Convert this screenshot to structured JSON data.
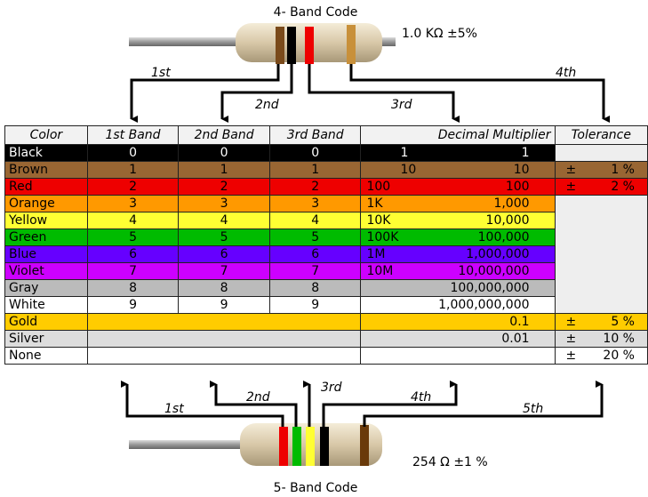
{
  "top": {
    "title": "4- Band Code",
    "value": "1.0 KΩ  ±5%",
    "labels": [
      "1st",
      "2nd",
      "3rd",
      "4th"
    ]
  },
  "bottom": {
    "title": "5- Band Code",
    "value": "254 Ω  ±1 %",
    "labels": [
      "1st",
      "2nd",
      "3rd",
      "4th",
      "5th"
    ]
  },
  "table": {
    "headers": [
      "Color",
      "1st Band",
      "2nd Band",
      "3rd Band",
      "Decimal Multiplier",
      "Tolerance"
    ],
    "rows": [
      {
        "color": "Black",
        "bg": "#000000",
        "fg": "#ffffff",
        "d": "0",
        "short": "1",
        "mult": "1",
        "tol": ""
      },
      {
        "color": "Brown",
        "bg": "#996633",
        "fg": "#000000",
        "d": "1",
        "short": "10",
        "mult": "10",
        "tol": "1 %"
      },
      {
        "color": "Red",
        "bg": "#ee0000",
        "fg": "#000000",
        "d": "2",
        "short": "100",
        "mult": "100",
        "tol": "2 %"
      },
      {
        "color": "Orange",
        "bg": "#ff9900",
        "fg": "#000000",
        "d": "3",
        "short": "1K",
        "mult": "1,000",
        "tol": ""
      },
      {
        "color": "Yellow",
        "bg": "#ffff33",
        "fg": "#000000",
        "d": "4",
        "short": "10K",
        "mult": "10,000",
        "tol": ""
      },
      {
        "color": "Green",
        "bg": "#00bb00",
        "fg": "#000000",
        "d": "5",
        "short": "100K",
        "mult": "100,000",
        "tol": ""
      },
      {
        "color": "Blue",
        "bg": "#6600ff",
        "fg": "#000000",
        "d": "6",
        "short": "1M",
        "mult": "1,000,000",
        "tol": ""
      },
      {
        "color": "Violet",
        "bg": "#cc00ff",
        "fg": "#000000",
        "d": "7",
        "short": "10M",
        "mult": "10,000,000",
        "tol": ""
      },
      {
        "color": "Gray",
        "bg": "#bbbbbb",
        "fg": "#000000",
        "d": "8",
        "short": "",
        "mult": "100,000,000",
        "tol": ""
      },
      {
        "color": "White",
        "bg": "#ffffff",
        "fg": "#000000",
        "d": "9",
        "short": "",
        "mult": "1,000,000,000",
        "tol": ""
      },
      {
        "color": "Gold",
        "bg": "#ffcc00",
        "fg": "#000000",
        "d": "",
        "short": "",
        "mult": "0.1",
        "tol": "5 %"
      },
      {
        "color": "Silver",
        "bg": "#dddddd",
        "fg": "#000000",
        "d": "",
        "short": "",
        "mult": "0.01",
        "tol": "10 %"
      },
      {
        "color": "None",
        "bg": "#ffffff",
        "fg": "#000000",
        "d": "",
        "short": "",
        "mult": "",
        "tol": "20 %"
      }
    ],
    "pm": "±"
  }
}
